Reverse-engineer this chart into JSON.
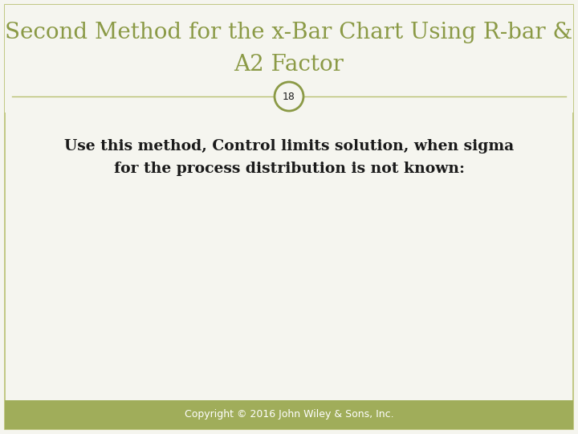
{
  "title_line1": "Second Method for the x-Bar Chart Using R-bar &",
  "title_line2": "A2 Factor",
  "title_color": "#8b9a46",
  "body_text_line1": "Use this method, Control limits solution, when sigma",
  "body_text_line2": "for the process distribution is not known:",
  "body_color": "#1a1a1a",
  "slide_number": "18",
  "circle_color": "#8b9a46",
  "footer_text": "Copyright © 2016 John Wiley & Sons, Inc.",
  "footer_bg_color": "#a0ad5a",
  "footer_text_color": "#ffffff",
  "bg_color": "#f5f5ef",
  "border_color": "#b8c070",
  "separator_color": "#b8c070",
  "title_fontsize": 20,
  "body_fontsize": 13.5
}
